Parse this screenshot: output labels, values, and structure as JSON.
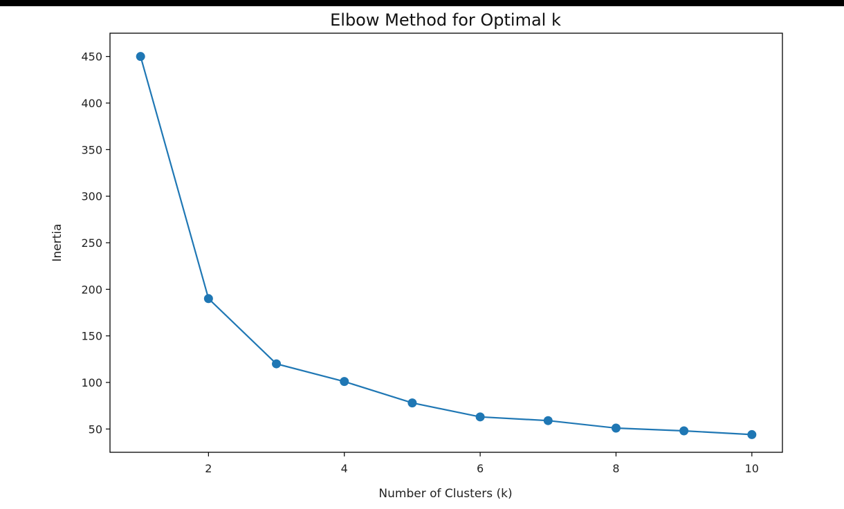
{
  "chart_data": {
    "type": "line",
    "title": "Elbow Method for Optimal k",
    "xlabel": "Number of Clusters (k)",
    "ylabel": "Inertia",
    "xlim": [
      0.55,
      10.45
    ],
    "ylim": [
      25,
      475
    ],
    "xticks": [
      2,
      4,
      6,
      8,
      10
    ],
    "yticks": [
      50,
      100,
      150,
      200,
      250,
      300,
      350,
      400,
      450
    ],
    "grid": false,
    "series": [
      {
        "color": "#1f77b4",
        "marker": "circle",
        "x": [
          1,
          2,
          3,
          4,
          5,
          6,
          7,
          8,
          9,
          10
        ],
        "y": [
          450,
          190,
          120,
          101,
          78,
          63,
          59,
          51,
          48,
          44
        ]
      }
    ]
  }
}
